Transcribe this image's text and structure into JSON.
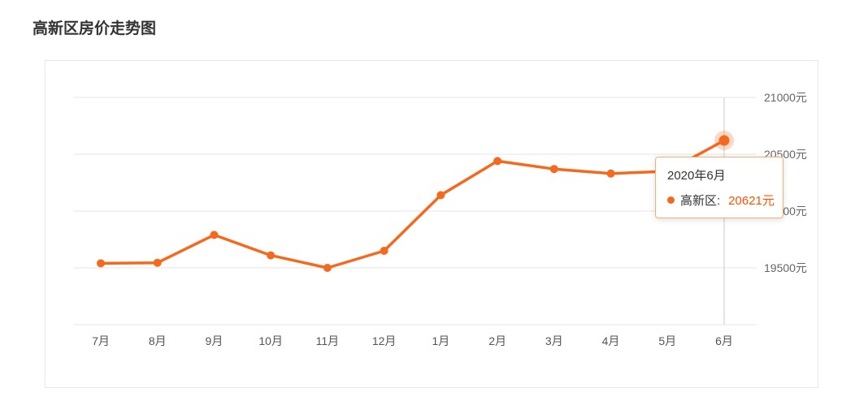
{
  "title": "高新区房价走势图",
  "colors": {
    "line": "#f5691e",
    "grid": "#e4e4e4",
    "axis_pointer": "#c9c9c9",
    "tooltip_border": "#f8ae72",
    "tooltip_value": "#ff5200",
    "axis_label": "#666666"
  },
  "chart_data": {
    "type": "line",
    "title": "高新区房价走势图",
    "categories": [
      "7月",
      "8月",
      "9月",
      "10月",
      "11月",
      "12月",
      "1月",
      "2月",
      "3月",
      "4月",
      "5月",
      "6月"
    ],
    "series": [
      {
        "name": "高新区",
        "values": [
          19540,
          19545,
          19790,
          19610,
          19500,
          19650,
          20140,
          20440,
          20370,
          20330,
          20350,
          20621
        ]
      }
    ],
    "xlabel": "",
    "ylabel": "",
    "ylim": [
      19000,
      21000
    ],
    "y_ticks": [
      {
        "value": 21000,
        "label": "21000元"
      },
      {
        "value": 20500,
        "label": "20500元"
      },
      {
        "value": 20000,
        "label": "20000元"
      },
      {
        "value": 19500,
        "label": "19500元"
      }
    ],
    "grid": true,
    "legend_position": "none",
    "highlight_index": 11
  },
  "tooltip": {
    "title": "2020年6月",
    "series_label": "高新区:",
    "value": "20621元"
  }
}
